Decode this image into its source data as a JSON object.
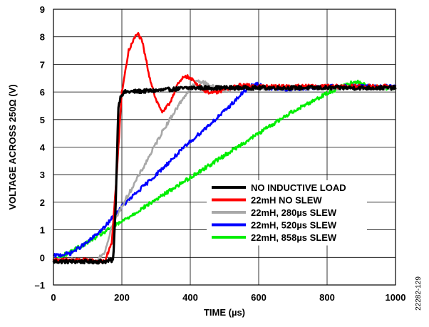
{
  "figure_id": "22282-129",
  "chart_data": {
    "type": "line",
    "xlabel": "TIME (µs)",
    "ylabel": "VOLTAGE ACROSS 250Ω (V)",
    "xlim": [
      0,
      1000
    ],
    "ylim": [
      -1,
      9
    ],
    "x_ticks": [
      0,
      200,
      400,
      600,
      800,
      1000
    ],
    "x_tick_labels": [
      "0",
      "200",
      "400",
      "600",
      "800",
      "1000"
    ],
    "y_ticks": [
      -1,
      0,
      1,
      2,
      3,
      4,
      5,
      6,
      7,
      8,
      9
    ],
    "y_tick_labels": [
      "–1",
      "0",
      "1",
      "2",
      "3",
      "4",
      "5",
      "6",
      "7",
      "8",
      "9"
    ],
    "grid": true,
    "legend_position": "bottom-right",
    "series": [
      {
        "name": "NO INDUCTIVE LOAD",
        "color": "#000000",
        "points": [
          [
            0,
            -0.15
          ],
          [
            150,
            -0.15
          ],
          [
            175,
            -0.1
          ],
          [
            182,
            2
          ],
          [
            190,
            5.5
          ],
          [
            198,
            5.9
          ],
          [
            210,
            6.0
          ],
          [
            300,
            6.05
          ],
          [
            400,
            6.15
          ],
          [
            500,
            6.15
          ],
          [
            600,
            6.15
          ],
          [
            800,
            6.15
          ],
          [
            1000,
            6.15
          ]
        ]
      },
      {
        "name": "22mH NO SLEW",
        "color": "#ff0000",
        "points": [
          [
            0,
            -0.1
          ],
          [
            100,
            -0.1
          ],
          [
            150,
            -0.15
          ],
          [
            170,
            0.5
          ],
          [
            185,
            3
          ],
          [
            200,
            6
          ],
          [
            220,
            7.5
          ],
          [
            245,
            8.15
          ],
          [
            260,
            7.8
          ],
          [
            280,
            6.6
          ],
          [
            300,
            5.7
          ],
          [
            320,
            5.25
          ],
          [
            340,
            5.6
          ],
          [
            360,
            6.2
          ],
          [
            385,
            6.6
          ],
          [
            410,
            6.4
          ],
          [
            440,
            6.05
          ],
          [
            470,
            5.95
          ],
          [
            500,
            6.1
          ],
          [
            550,
            6.25
          ],
          [
            600,
            6.2
          ],
          [
            800,
            6.2
          ],
          [
            1000,
            6.2
          ]
        ]
      },
      {
        "name": "22mH, 280µs SLEW",
        "color": "#a8a8a8",
        "points": [
          [
            0,
            -0.1
          ],
          [
            60,
            -0.1
          ],
          [
            120,
            -0.15
          ],
          [
            150,
            0.2
          ],
          [
            170,
            1.1
          ],
          [
            200,
            1.85
          ],
          [
            260,
            3.2
          ],
          [
            320,
            4.6
          ],
          [
            380,
            5.8
          ],
          [
            420,
            6.4
          ],
          [
            450,
            6.3
          ],
          [
            480,
            6.1
          ],
          [
            520,
            6.1
          ],
          [
            560,
            6.2
          ],
          [
            620,
            6.15
          ],
          [
            800,
            6.15
          ],
          [
            1000,
            6.15
          ]
        ]
      },
      {
        "name": "22mH, 520µs SLEW",
        "color": "#0000ff",
        "points": [
          [
            0,
            0.05
          ],
          [
            50,
            0.15
          ],
          [
            100,
            0.55
          ],
          [
            150,
            1.1
          ],
          [
            200,
            1.85
          ],
          [
            300,
            3.0
          ],
          [
            400,
            4.2
          ],
          [
            500,
            5.3
          ],
          [
            560,
            6.05
          ],
          [
            590,
            6.3
          ],
          [
            620,
            6.15
          ],
          [
            700,
            6.1
          ],
          [
            800,
            6.2
          ],
          [
            1000,
            6.2
          ]
        ]
      },
      {
        "name": "22mH, 858µs SLEW",
        "color": "#00ee00",
        "points": [
          [
            0,
            -0.1
          ],
          [
            50,
            0.2
          ],
          [
            100,
            0.55
          ],
          [
            200,
            1.3
          ],
          [
            300,
            2.1
          ],
          [
            400,
            2.9
          ],
          [
            500,
            3.7
          ],
          [
            600,
            4.5
          ],
          [
            700,
            5.3
          ],
          [
            800,
            5.95
          ],
          [
            860,
            6.3
          ],
          [
            890,
            6.35
          ],
          [
            920,
            6.2
          ],
          [
            960,
            6.15
          ],
          [
            1000,
            6.15
          ]
        ]
      }
    ]
  }
}
